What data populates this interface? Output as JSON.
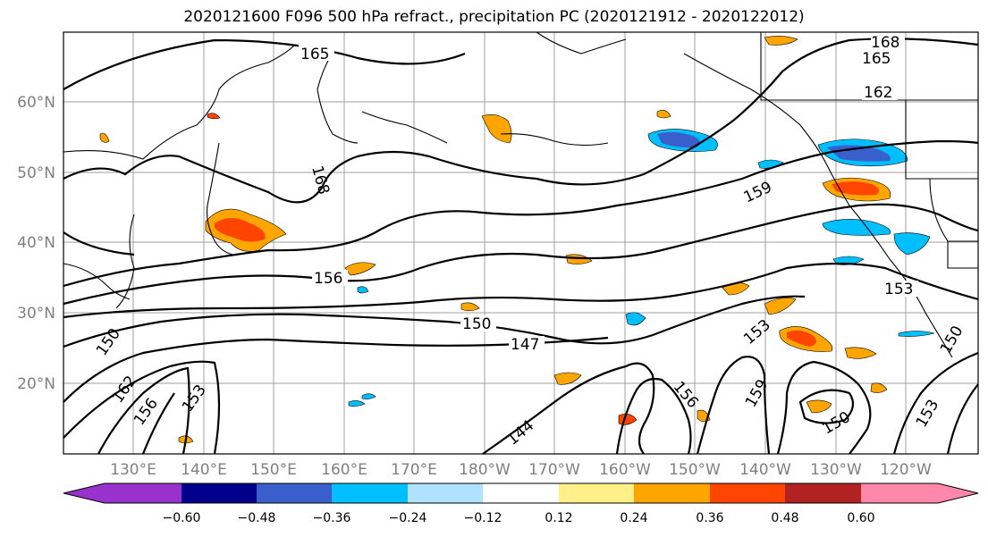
{
  "title": "2020121600 F096 500 hPa refract., precipitation PC (2020121912 - 2020122012)",
  "lat_labels": [
    "60°N",
    "50°N",
    "40°N",
    "30°N",
    "20°N"
  ],
  "lon_labels": [
    "130°E",
    "140°E",
    "150°E",
    "160°E",
    "170°E",
    "180°W",
    "170°W",
    "160°W",
    "150°W",
    "140°W",
    "130°W",
    "120°W"
  ],
  "contour_labels": [
    "165",
    "168",
    "165",
    "162",
    "168",
    "159",
    "156",
    "150",
    "147",
    "153",
    "153",
    "150",
    "162",
    "156",
    "153",
    "144",
    "156",
    "159",
    "150",
    "153",
    "150"
  ],
  "colorbar": {
    "colors": [
      "#9932cc",
      "#00008b",
      "#3a5fcd",
      "#00bfff",
      "#b0e2ff",
      "#ffffff",
      "#fff08a",
      "#ffa500",
      "#ff4500",
      "#b22222",
      "#ff88aa"
    ],
    "tick_labels": [
      "−0.60",
      "−0.48",
      "−0.36",
      "−0.24",
      "−0.12",
      "0.12",
      "0.24",
      "0.36",
      "0.48",
      "0.60"
    ]
  }
}
